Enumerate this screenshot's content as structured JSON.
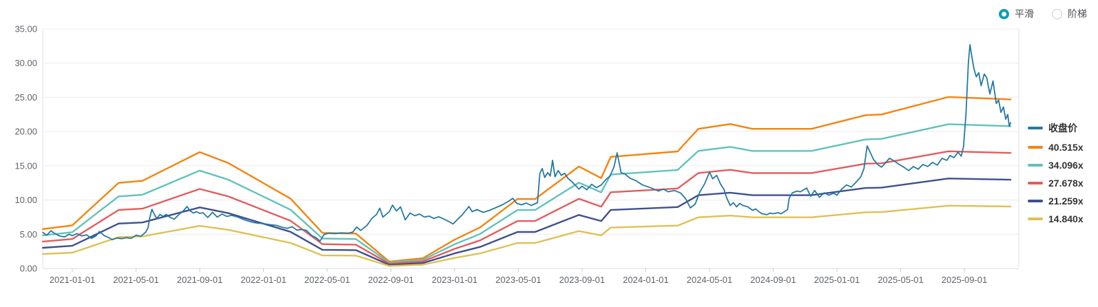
{
  "controls": {
    "mode_options": [
      {
        "label": "平滑",
        "selected": true
      },
      {
        "label": "阶梯",
        "selected": false
      }
    ]
  },
  "legend": [
    {
      "label": "收盘价",
      "color": "#2478a2"
    },
    {
      "label": "40.515x",
      "color": "#f5830e"
    },
    {
      "label": "34.096x",
      "color": "#5fc2bc"
    },
    {
      "label": "27.678x",
      "color": "#e45b5c"
    },
    {
      "label": "21.259x",
      "color": "#3f4f8c"
    },
    {
      "label": "14.840x",
      "color": "#e0c052"
    }
  ],
  "chart_data": {
    "type": "line",
    "title": "",
    "xlabel": "",
    "ylabel": "",
    "x_unit": "months since 2021-01-01",
    "x_range": [
      -1.85,
      59.4
    ],
    "y_range": [
      0,
      35
    ],
    "grid": "horizontal",
    "legend_position": "right",
    "y_tick_labels": [
      "0.00",
      "5.00",
      "10.00",
      "15.00",
      "20.00",
      "25.00",
      "30.00",
      "35.00"
    ],
    "x_tick_positions": [
      0,
      4,
      8,
      12,
      16,
      20,
      24,
      28,
      32,
      36,
      40,
      44,
      48,
      52,
      56
    ],
    "x_tick_labels": [
      "2021-01-01",
      "2021-05-01",
      "2021-09-01",
      "2022-01-01",
      "2022-05-01",
      "2022-09-01",
      "2023-01-01",
      "2023-05-01",
      "2023-09-01",
      "2024-01-01",
      "2024-05-01",
      "2024-09-01",
      "2025-01-01",
      "2025-05-01",
      "2025-09-01"
    ],
    "pe_multiples": [
      40.515,
      34.096,
      27.678,
      21.259,
      14.84
    ],
    "band_base_multiple": 40.515,
    "band_base_points": [
      [
        -1.85,
        5.75
      ],
      [
        0,
        6.3
      ],
      [
        2.9,
        12.5
      ],
      [
        4.4,
        12.8
      ],
      [
        8.0,
        17.0
      ],
      [
        9.8,
        15.4
      ],
      [
        13.7,
        10.2
      ],
      [
        15.7,
        5.2
      ],
      [
        17.8,
        5.1
      ],
      [
        19.9,
        1.0
      ],
      [
        22.0,
        1.5
      ],
      [
        24.0,
        4.2
      ],
      [
        25.6,
        6.0
      ],
      [
        27.95,
        10.15
      ],
      [
        29.05,
        10.15
      ],
      [
        31.8,
        14.9
      ],
      [
        33.2,
        13.2
      ],
      [
        33.8,
        16.3
      ],
      [
        38.0,
        17.1
      ],
      [
        39.3,
        20.4
      ],
      [
        41.3,
        21.1
      ],
      [
        42.7,
        20.4
      ],
      [
        46.4,
        20.4
      ],
      [
        49.8,
        22.4
      ],
      [
        50.8,
        22.5
      ],
      [
        55.0,
        25.05
      ],
      [
        58.9,
        24.7
      ]
    ],
    "price_series_name": "收盘价",
    "price_points": [
      [
        -1.85,
        5.25
      ],
      [
        -1.6,
        4.85
      ],
      [
        -1.35,
        5.5
      ],
      [
        -1.1,
        5.1
      ],
      [
        -0.8,
        4.75
      ],
      [
        -0.5,
        4.6
      ],
      [
        -0.2,
        5.0
      ],
      [
        0.0,
        4.8
      ],
      [
        0.3,
        5.1
      ],
      [
        0.6,
        4.75
      ],
      [
        0.9,
        4.9
      ],
      [
        1.2,
        4.4
      ],
      [
        1.5,
        4.8
      ],
      [
        1.7,
        5.4
      ],
      [
        2.0,
        4.8
      ],
      [
        2.3,
        4.5
      ],
      [
        2.5,
        4.2
      ],
      [
        2.8,
        4.45
      ],
      [
        3.1,
        4.35
      ],
      [
        3.4,
        4.5
      ],
      [
        3.7,
        4.4
      ],
      [
        4.0,
        4.85
      ],
      [
        4.3,
        4.7
      ],
      [
        4.6,
        5.3
      ],
      [
        4.75,
        5.9
      ],
      [
        4.85,
        7.3
      ],
      [
        5.0,
        8.65
      ],
      [
        5.15,
        7.9
      ],
      [
        5.3,
        7.3
      ],
      [
        5.5,
        7.9
      ],
      [
        5.7,
        7.6
      ],
      [
        5.9,
        7.9
      ],
      [
        6.1,
        7.5
      ],
      [
        6.4,
        7.2
      ],
      [
        6.7,
        7.9
      ],
      [
        7.0,
        8.5
      ],
      [
        7.2,
        9.05
      ],
      [
        7.4,
        8.4
      ],
      [
        7.6,
        8.1
      ],
      [
        7.8,
        8.3
      ],
      [
        8.0,
        8.05
      ],
      [
        8.2,
        8.15
      ],
      [
        8.5,
        7.45
      ],
      [
        8.8,
        8.2
      ],
      [
        9.1,
        7.5
      ],
      [
        9.4,
        7.95
      ],
      [
        9.7,
        7.6
      ],
      [
        10.0,
        7.75
      ],
      [
        10.4,
        7.5
      ],
      [
        10.7,
        7.2
      ],
      [
        11.0,
        6.95
      ],
      [
        11.4,
        6.7
      ],
      [
        11.7,
        6.6
      ],
      [
        12.0,
        6.55
      ],
      [
        12.4,
        6.4
      ],
      [
        12.8,
        6.3
      ],
      [
        13.2,
        6.0
      ],
      [
        13.5,
        5.85
      ],
      [
        13.8,
        6.1
      ],
      [
        14.1,
        5.6
      ],
      [
        14.4,
        5.7
      ],
      [
        14.7,
        5.55
      ],
      [
        15.0,
        4.85
      ],
      [
        15.3,
        4.5
      ],
      [
        15.55,
        4.0
      ],
      [
        15.8,
        4.95
      ],
      [
        16.1,
        5.15
      ],
      [
        16.5,
        5.1
      ],
      [
        16.9,
        5.2
      ],
      [
        17.3,
        5.15
      ],
      [
        17.6,
        5.3
      ],
      [
        17.85,
        6.05
      ],
      [
        18.1,
        5.55
      ],
      [
        18.5,
        6.3
      ],
      [
        18.8,
        7.3
      ],
      [
        19.1,
        7.9
      ],
      [
        19.3,
        8.8
      ],
      [
        19.5,
        7.5
      ],
      [
        19.9,
        8.3
      ],
      [
        20.1,
        9.25
      ],
      [
        20.35,
        8.4
      ],
      [
        20.6,
        9.0
      ],
      [
        20.9,
        7.1
      ],
      [
        21.2,
        8.1
      ],
      [
        21.5,
        7.7
      ],
      [
        21.8,
        7.95
      ],
      [
        22.1,
        7.5
      ],
      [
        22.4,
        7.65
      ],
      [
        22.7,
        7.3
      ],
      [
        23.0,
        7.55
      ],
      [
        23.3,
        7.25
      ],
      [
        23.6,
        6.9
      ],
      [
        23.9,
        6.5
      ],
      [
        24.2,
        7.2
      ],
      [
        24.5,
        7.9
      ],
      [
        24.9,
        9.05
      ],
      [
        25.1,
        8.3
      ],
      [
        25.4,
        8.6
      ],
      [
        25.8,
        8.2
      ],
      [
        26.2,
        8.5
      ],
      [
        26.6,
        8.9
      ],
      [
        27.0,
        9.3
      ],
      [
        27.4,
        9.85
      ],
      [
        27.65,
        10.25
      ],
      [
        27.9,
        9.5
      ],
      [
        28.2,
        9.3
      ],
      [
        28.5,
        9.55
      ],
      [
        28.8,
        9.2
      ],
      [
        29.05,
        9.45
      ],
      [
        29.2,
        9.6
      ],
      [
        29.35,
        13.9
      ],
      [
        29.5,
        14.6
      ],
      [
        29.65,
        13.3
      ],
      [
        29.85,
        14.0
      ],
      [
        30.0,
        13.5
      ],
      [
        30.15,
        15.8
      ],
      [
        30.3,
        13.4
      ],
      [
        30.5,
        14.3
      ],
      [
        30.7,
        13.6
      ],
      [
        30.9,
        13.9
      ],
      [
        31.1,
        13.2
      ],
      [
        31.35,
        12.7
      ],
      [
        31.6,
        12.1
      ],
      [
        31.8,
        11.6
      ],
      [
        32.0,
        12.0
      ],
      [
        32.3,
        11.5
      ],
      [
        32.6,
        12.3
      ],
      [
        32.9,
        11.8
      ],
      [
        33.2,
        12.2
      ],
      [
        33.5,
        13.0
      ],
      [
        33.75,
        13.5
      ],
      [
        34.0,
        14.8
      ],
      [
        34.2,
        16.9
      ],
      [
        34.45,
        14.0
      ],
      [
        34.7,
        13.8
      ],
      [
        35.0,
        13.2
      ],
      [
        35.4,
        12.8
      ],
      [
        35.8,
        12.2
      ],
      [
        36.3,
        11.8
      ],
      [
        36.8,
        11.3
      ],
      [
        37.1,
        11.6
      ],
      [
        37.4,
        11.2
      ],
      [
        37.8,
        11.4
      ],
      [
        38.2,
        11.0
      ],
      [
        38.5,
        10.2
      ],
      [
        38.8,
        8.85
      ],
      [
        39.1,
        9.4
      ],
      [
        39.4,
        11.2
      ],
      [
        39.7,
        12.4
      ],
      [
        40.0,
        14.1
      ],
      [
        40.2,
        13.1
      ],
      [
        40.45,
        13.6
      ],
      [
        40.7,
        12.3
      ],
      [
        40.9,
        11.6
      ],
      [
        41.1,
        10.2
      ],
      [
        41.3,
        9.2
      ],
      [
        41.5,
        9.6
      ],
      [
        41.7,
        9.0
      ],
      [
        41.9,
        9.5
      ],
      [
        42.1,
        9.2
      ],
      [
        42.4,
        9.0
      ],
      [
        42.7,
        8.5
      ],
      [
        42.9,
        8.7
      ],
      [
        43.1,
        8.3
      ],
      [
        43.3,
        8.0
      ],
      [
        43.6,
        7.85
      ],
      [
        43.8,
        8.1
      ],
      [
        44.0,
        8.0
      ],
      [
        44.3,
        8.15
      ],
      [
        44.5,
        8.0
      ],
      [
        44.7,
        8.3
      ],
      [
        44.9,
        8.6
      ],
      [
        45.0,
        10.25
      ],
      [
        45.2,
        11.05
      ],
      [
        45.5,
        11.3
      ],
      [
        45.7,
        11.2
      ],
      [
        46.1,
        11.75
      ],
      [
        46.35,
        10.55
      ],
      [
        46.6,
        11.4
      ],
      [
        46.9,
        10.4
      ],
      [
        47.2,
        11.05
      ],
      [
        47.5,
        10.7
      ],
      [
        47.8,
        11.0
      ],
      [
        48.0,
        10.7
      ],
      [
        48.3,
        11.6
      ],
      [
        48.6,
        12.2
      ],
      [
        48.9,
        11.9
      ],
      [
        49.2,
        12.6
      ],
      [
        49.5,
        13.4
      ],
      [
        49.7,
        14.6
      ],
      [
        49.9,
        17.9
      ],
      [
        50.1,
        16.9
      ],
      [
        50.3,
        15.9
      ],
      [
        50.6,
        15.1
      ],
      [
        50.8,
        14.8
      ],
      [
        51.0,
        15.3
      ],
      [
        51.3,
        16.1
      ],
      [
        51.6,
        15.7
      ],
      [
        51.9,
        15.2
      ],
      [
        52.2,
        14.8
      ],
      [
        52.5,
        14.3
      ],
      [
        52.8,
        14.9
      ],
      [
        53.1,
        14.5
      ],
      [
        53.4,
        15.2
      ],
      [
        53.7,
        14.9
      ],
      [
        54.0,
        15.5
      ],
      [
        54.3,
        15.1
      ],
      [
        54.6,
        16.1
      ],
      [
        54.9,
        15.8
      ],
      [
        55.1,
        16.5
      ],
      [
        55.35,
        16.2
      ],
      [
        55.6,
        17.0
      ],
      [
        55.8,
        16.4
      ],
      [
        55.95,
        17.8
      ],
      [
        56.1,
        22.5
      ],
      [
        56.25,
        30.0
      ],
      [
        56.35,
        32.7
      ],
      [
        56.5,
        30.5
      ],
      [
        56.6,
        29.2
      ],
      [
        56.75,
        28.0
      ],
      [
        56.9,
        28.6
      ],
      [
        57.05,
        26.7
      ],
      [
        57.25,
        28.4
      ],
      [
        57.4,
        27.9
      ],
      [
        57.6,
        25.5
      ],
      [
        57.8,
        27.4
      ],
      [
        58.0,
        24.1
      ],
      [
        58.15,
        24.6
      ],
      [
        58.3,
        22.8
      ],
      [
        58.45,
        23.6
      ],
      [
        58.6,
        21.8
      ],
      [
        58.72,
        22.5
      ],
      [
        58.82,
        20.8
      ],
      [
        58.9,
        21.3
      ]
    ]
  }
}
